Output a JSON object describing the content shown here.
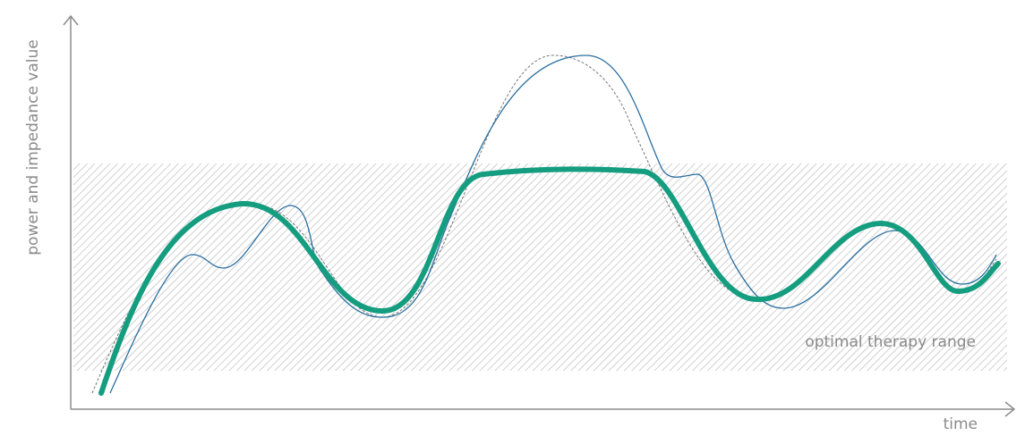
{
  "diagram": {
    "y_axis_label": "power and impedance value",
    "x_axis_label": "time",
    "range_label": "optimal therapy range"
  }
}
